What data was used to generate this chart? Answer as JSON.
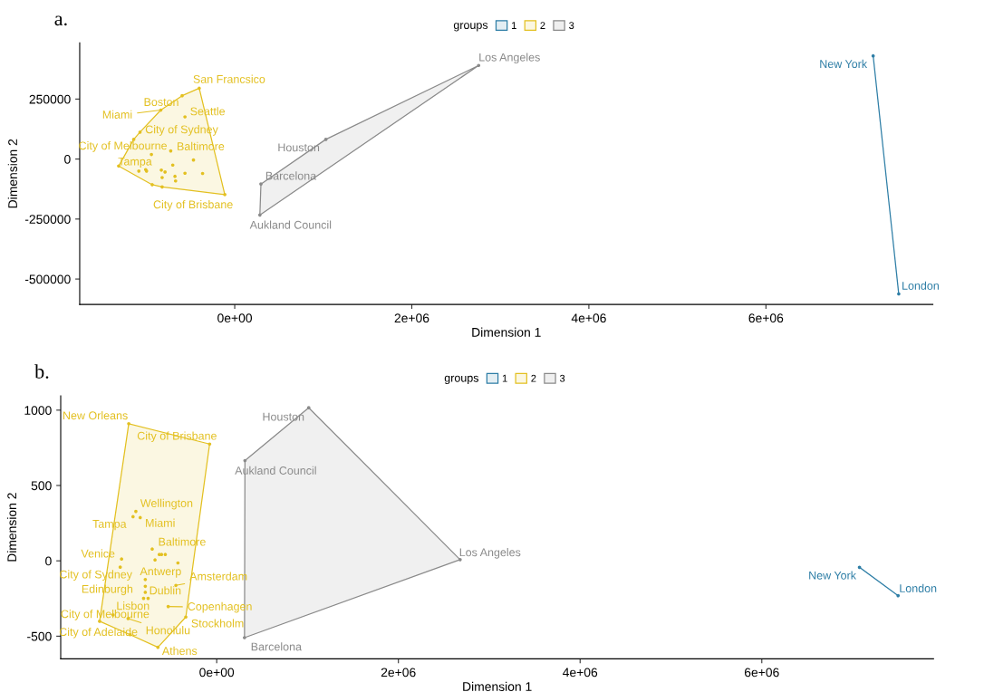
{
  "chart_data": [
    {
      "type": "scatter",
      "title": "a.",
      "xlabel": "Dimension 1",
      "ylabel": "Dimension 2",
      "legend_title": "groups",
      "legend": "top",
      "marker": "circle",
      "grid": false,
      "xlim": [
        -1751000,
        7885000
      ],
      "ylim": [
        -606000,
        484000
      ],
      "xticks": [
        {
          "value": 0,
          "label": "0e+00"
        },
        {
          "value": 2000000,
          "label": "2e+06"
        },
        {
          "value": 4000000,
          "label": "4e+06"
        },
        {
          "value": 6000000,
          "label": "6e+06"
        }
      ],
      "yticks": [
        -500000,
        -250000,
        0,
        250000
      ],
      "series": [
        {
          "name": "1",
          "color": "#2e7ea6",
          "x": [
            7211000,
            7500000
          ],
          "values": [
            430000,
            -562000
          ]
        },
        {
          "name": "2",
          "color": "#e3c021",
          "x": [
            -401000,
            -594000,
            -835000,
            -562000,
            -1070000,
            -1141000,
            -723000,
            -1311000,
            -112000,
            -941000,
            -1083000,
            -1006000,
            -996000,
            -829000,
            -787000,
            -820000,
            -700000,
            -675000,
            -668000,
            -562000,
            -466000,
            -363000,
            -932000,
            -820000
          ],
          "values": [
            295000,
            264000,
            204000,
            176000,
            112000,
            82000,
            34000,
            -29000,
            -148000,
            19000,
            -50000,
            -44000,
            -50000,
            -46000,
            -54000,
            -77000,
            -25000,
            -72000,
            -91000,
            -59000,
            -4000,
            -60000,
            -107000,
            -116000
          ]
        },
        {
          "name": "3",
          "color": "#8a8a8a",
          "x": [
            2755000,
            1029000,
            296000,
            284000
          ],
          "values": [
            390000,
            82000,
            -104000,
            -233000
          ]
        },
        {
          "type": "line",
          "marker": "none",
          "color": "#2e7ea6",
          "x": [
            7211000,
            7500000
          ],
          "values": [
            430000,
            -562000
          ]
        },
        {
          "type": "area",
          "marker": "none",
          "color": "#e3c021",
          "x": [
            -1311000,
            -1141000,
            -1070000,
            -835000,
            -594000,
            -401000,
            -112000,
            -820000,
            -932000,
            -1311000
          ],
          "values": [
            -29000,
            82000,
            112000,
            204000,
            264000,
            295000,
            -148000,
            -116000,
            -107000,
            -29000
          ]
        },
        {
          "type": "area",
          "marker": "none",
          "color": "#8a8a8a",
          "x": [
            284000,
            296000,
            1029000,
            2755000,
            284000
          ],
          "values": [
            -233000,
            -104000,
            82000,
            390000,
            -233000
          ]
        }
      ],
      "annotations": [
        {
          "text": "San Francsico",
          "x": -401000,
          "y": 295000
        },
        {
          "text": "Boston",
          "x": -594000,
          "y": 264000
        },
        {
          "text": "Miami",
          "x": -835000,
          "y": 204000
        },
        {
          "text": "Seattle",
          "x": -562000,
          "y": 176000
        },
        {
          "text": "City of Sydney",
          "x": -1070000,
          "y": 112000
        },
        {
          "text": "City of Melbourne",
          "x": -1141000,
          "y": 82000
        },
        {
          "text": "Baltimore",
          "x": -723000,
          "y": 34000
        },
        {
          "text": "Tampa",
          "x": -1311000,
          "y": -29000
        },
        {
          "text": "City of Brisbane",
          "x": -112000,
          "y": -148000
        },
        {
          "text": "Los Angeles",
          "x": 2755000,
          "y": 390000
        },
        {
          "text": "Houston",
          "x": 1029000,
          "y": 82000
        },
        {
          "text": "Barcelona",
          "x": 296000,
          "y": -104000
        },
        {
          "text": "Aukland Council",
          "x": 284000,
          "y": -233000
        },
        {
          "text": "New York",
          "x": 7211000,
          "y": 430000
        },
        {
          "text": "London",
          "x": 7500000,
          "y": -562000
        }
      ]
    },
    {
      "type": "scatter",
      "title": "b.",
      "xlabel": "Dimension 1",
      "ylabel": "Dimension 2",
      "legend_title": "groups",
      "legend": "top",
      "marker": "circle",
      "grid": false,
      "xlim": [
        -1717000,
        7890000
      ],
      "ylim": [
        -650,
        1095
      ],
      "xticks": [
        {
          "value": 0,
          "label": "0e+00"
        },
        {
          "value": 2000000,
          "label": "2e+06"
        },
        {
          "value": 4000000,
          "label": "4e+06"
        },
        {
          "value": 6000000,
          "label": "6e+06"
        }
      ],
      "yticks": [
        -500,
        0,
        500,
        1000
      ],
      "series": [
        {
          "name": "1",
          "color": "#2e7ea6",
          "x": [
            7075000,
            7500000
          ],
          "values": [
            -43,
            -231
          ]
        },
        {
          "name": "2",
          "color": "#e3c021",
          "x": [
            -968000,
            -78000,
            -890000,
            -921000,
            -842000,
            -710000,
            -1047000,
            -1062000,
            -786000,
            -786000,
            -449000,
            -786000,
            -1141000,
            -534000,
            -340000,
            -1289000,
            -975000,
            -953000,
            -647000,
            -632000,
            -607000,
            -566000,
            -679000,
            -427000,
            -805000,
            -755000
          ],
          "values": [
            910,
            775,
            328,
            293,
            287,
            78,
            12,
            -42,
            -124,
            -169,
            -163,
            -209,
            -359,
            -303,
            -373,
            -401,
            -383,
            -490,
            -574,
            42,
            42,
            42,
            6,
            -14,
            -249,
            -249
          ]
        },
        {
          "name": "3",
          "color": "#8a8a8a",
          "x": [
            1013000,
            311000,
            2679000,
            306000
          ],
          "values": [
            1016,
            665,
            8,
            -510
          ]
        },
        {
          "type": "line",
          "marker": "none",
          "color": "#2e7ea6",
          "x": [
            7075000,
            7500000
          ],
          "values": [
            -43,
            -231
          ]
        },
        {
          "type": "area",
          "marker": "none",
          "color": "#e3c021",
          "x": [
            -968000,
            -78000,
            -340000,
            -647000,
            -953000,
            -1289000,
            -968000
          ],
          "values": [
            910,
            775,
            -373,
            -574,
            -490,
            -401,
            910
          ]
        },
        {
          "type": "area",
          "marker": "none",
          "color": "#8a8a8a",
          "x": [
            1013000,
            2679000,
            306000,
            311000,
            1013000
          ],
          "values": [
            1016,
            8,
            -510,
            665,
            1016
          ]
        }
      ],
      "annotations": [
        {
          "text": "New Orleans",
          "x": -968000,
          "y": 910
        },
        {
          "text": "City of Brisbane",
          "x": -78000,
          "y": 775
        },
        {
          "text": "Wellington",
          "x": -890000,
          "y": 328
        },
        {
          "text": "Tampa",
          "x": -921000,
          "y": 293
        },
        {
          "text": "Miami",
          "x": -842000,
          "y": 287
        },
        {
          "text": "Baltimore",
          "x": -710000,
          "y": 78
        },
        {
          "text": "Venice",
          "x": -1047000,
          "y": 12
        },
        {
          "text": "City of Sydney",
          "x": -1062000,
          "y": -42
        },
        {
          "text": "Antwerp",
          "x": -786000,
          "y": -124
        },
        {
          "text": "Edinburgh",
          "x": -786000,
          "y": -169
        },
        {
          "text": "Amsterdam",
          "x": -449000,
          "y": -163
        },
        {
          "text": "Dublin",
          "x": -786000,
          "y": -209
        },
        {
          "text": "Lisbon",
          "x": -1141000,
          "y": -359
        },
        {
          "text": "Copenhagen",
          "x": -534000,
          "y": -303
        },
        {
          "text": "Stockholm",
          "x": -340000,
          "y": -373
        },
        {
          "text": "City of Melbourne",
          "x": -1289000,
          "y": -401
        },
        {
          "text": "Honolulu",
          "x": -975000,
          "y": -383
        },
        {
          "text": "City of Adelaide",
          "x": -953000,
          "y": -490
        },
        {
          "text": "Athens",
          "x": -647000,
          "y": -574
        },
        {
          "text": "Houston",
          "x": 1013000,
          "y": 1016
        },
        {
          "text": "Aukland Council",
          "x": 311000,
          "y": 665
        },
        {
          "text": "Los Angeles",
          "x": 2679000,
          "y": 8
        },
        {
          "text": "Barcelona",
          "x": 306000,
          "y": -510
        },
        {
          "text": "New York",
          "x": 7075000,
          "y": -43
        },
        {
          "text": "London",
          "x": 7500000,
          "y": -231
        }
      ]
    }
  ]
}
